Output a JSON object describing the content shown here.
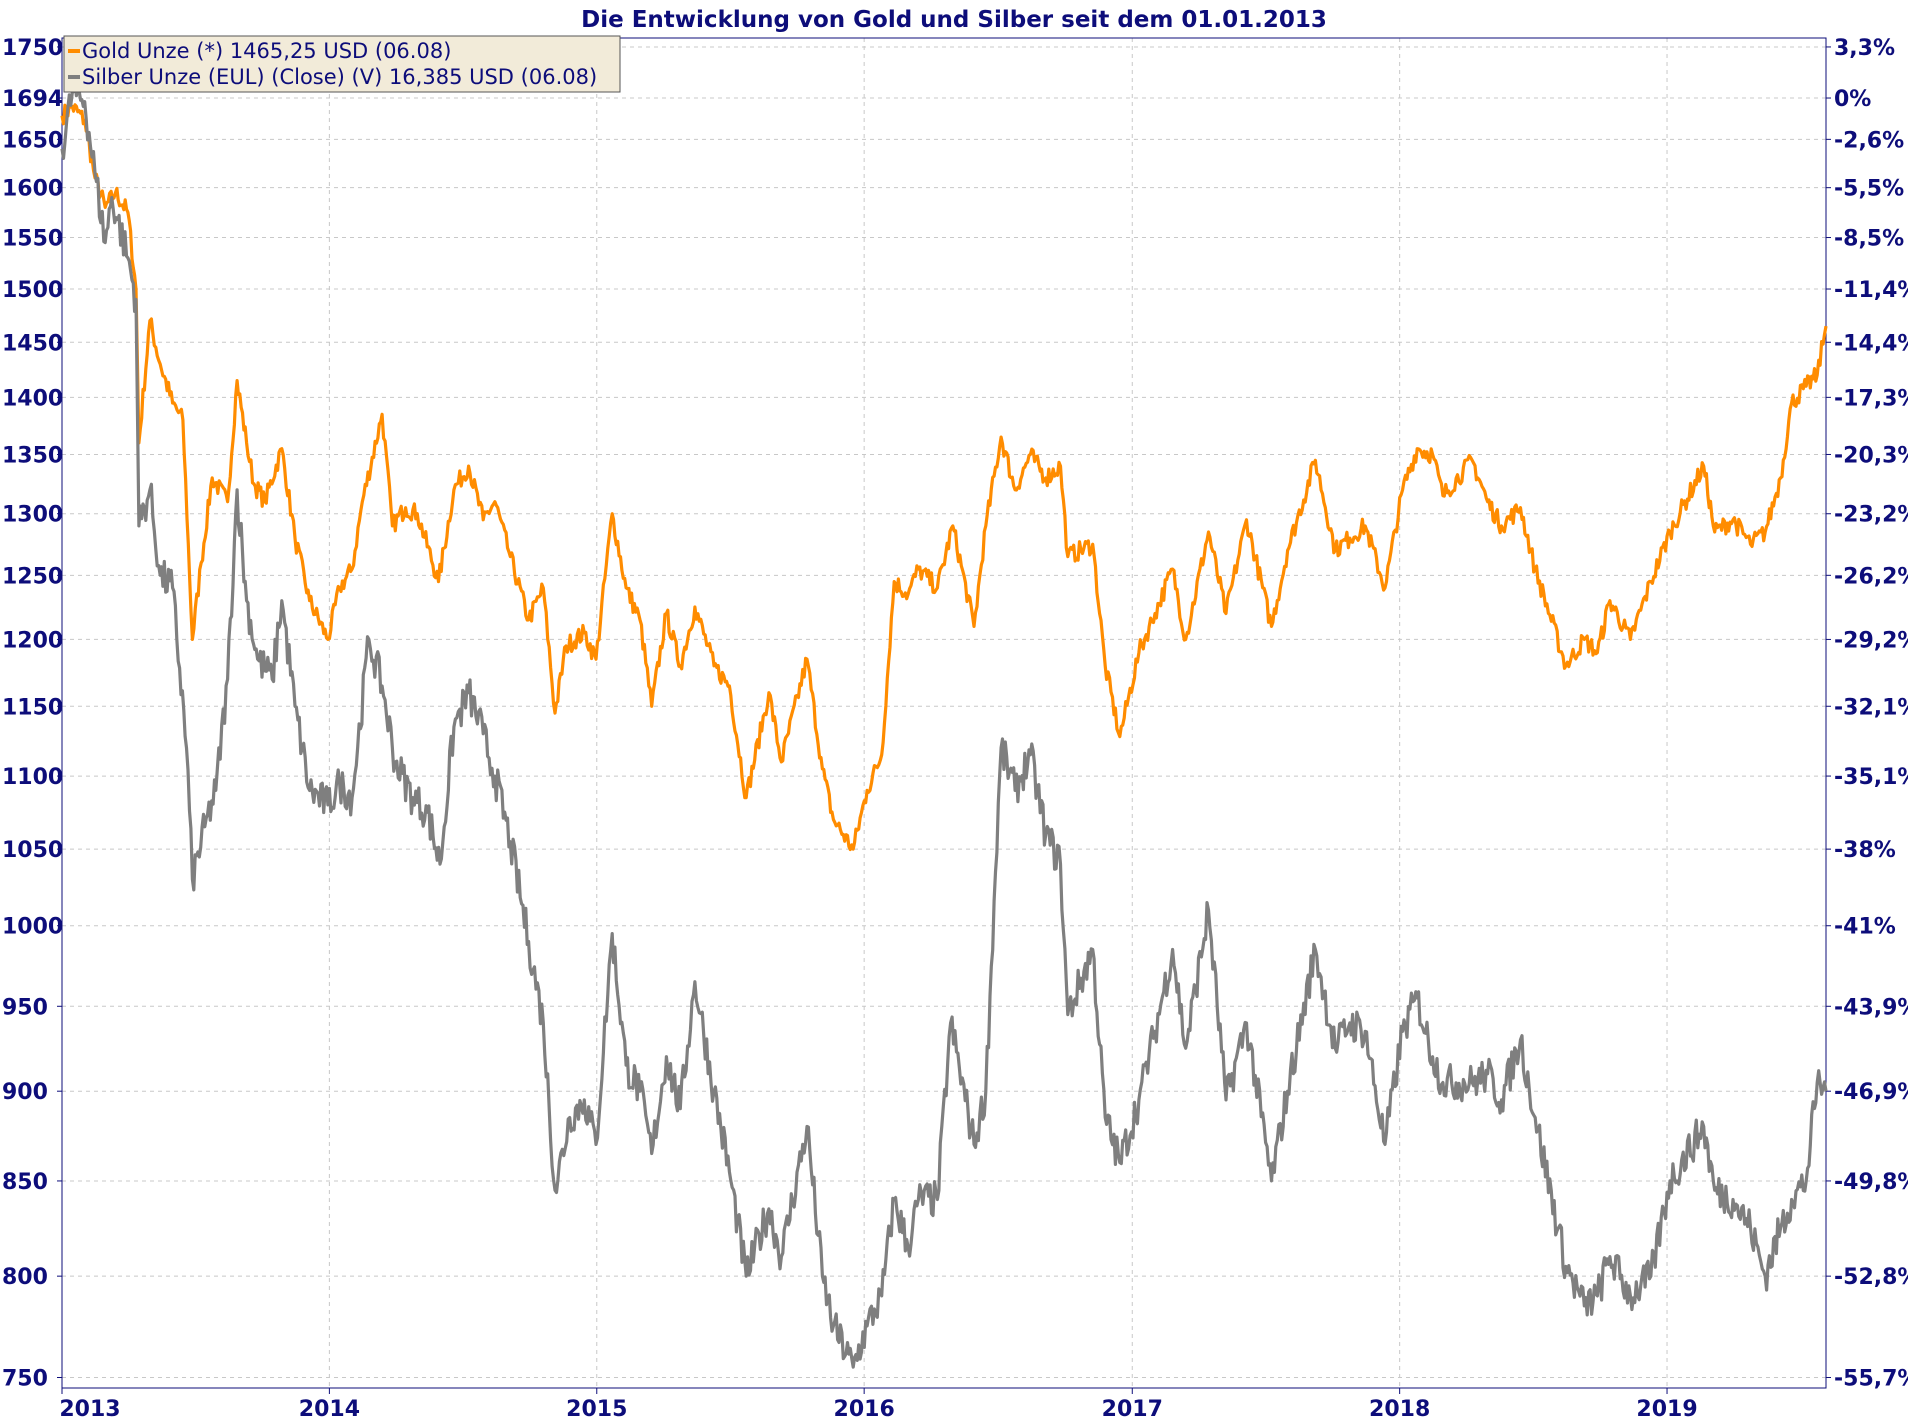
{
  "chart_data": {
    "type": "line",
    "title": "Die Entwicklung von Gold und Silber seit dem 01.01.2013",
    "x_tick_labels": [
      "2013",
      "2014",
      "2015",
      "2016",
      "2017",
      "2018",
      "2019"
    ],
    "x_range": [
      "2013-01-01",
      "2019-08-06"
    ],
    "y_left": {
      "scale": "log",
      "range": [
        745,
        1760
      ],
      "tick_labels": [
        "1750",
        "1694",
        "1650",
        "1600",
        "1550",
        "1500",
        "1450",
        "1400",
        "1350",
        "1300",
        "1250",
        "1200",
        "1150",
        "1100",
        "1050",
        "1000",
        "950",
        "900",
        "850",
        "800",
        "750"
      ],
      "tick_values": [
        1750,
        1694,
        1650,
        1600,
        1550,
        1500,
        1450,
        1400,
        1350,
        1300,
        1250,
        1200,
        1150,
        1100,
        1050,
        1000,
        950,
        900,
        850,
        800,
        750
      ]
    },
    "y_right": {
      "tick_labels": [
        "3,3%",
        "0%",
        "-2,6%",
        "-5,5%",
        "-8,5%",
        "-11,4%",
        "-14,4%",
        "-17,3%",
        "-20,3%",
        "-23,2%",
        "-26,2%",
        "-29,2%",
        "-32,1%",
        "-35,1%",
        "-38%",
        "-41%",
        "-43,9%",
        "-46,9%",
        "-49,8%",
        "-52,8%",
        "-55,7%"
      ]
    },
    "grid": true,
    "legend_position": "top-left",
    "series": [
      {
        "name": "Gold Unze (*) 1465,25 USD (06.08)",
        "color": "#ff8c00",
        "points": [
          [
            "2013-01-01",
            1675
          ],
          [
            "2013-01-15",
            1685
          ],
          [
            "2013-02-01",
            1670
          ],
          [
            "2013-02-15",
            1610
          ],
          [
            "2013-03-01",
            1580
          ],
          [
            "2013-03-15",
            1595
          ],
          [
            "2013-04-01",
            1575
          ],
          [
            "2013-04-12",
            1500
          ],
          [
            "2013-04-16",
            1360
          ],
          [
            "2013-05-01",
            1470
          ],
          [
            "2013-05-15",
            1430
          ],
          [
            "2013-06-01",
            1395
          ],
          [
            "2013-06-15",
            1380
          ],
          [
            "2013-06-28",
            1200
          ],
          [
            "2013-07-10",
            1260
          ],
          [
            "2013-07-25",
            1330
          ],
          [
            "2013-08-15",
            1310
          ],
          [
            "2013-08-28",
            1415
          ],
          [
            "2013-09-10",
            1360
          ],
          [
            "2013-09-20",
            1325
          ],
          [
            "2013-10-05",
            1310
          ],
          [
            "2013-10-28",
            1355
          ],
          [
            "2013-11-15",
            1280
          ],
          [
            "2013-12-05",
            1230
          ],
          [
            "2013-12-30",
            1200
          ],
          [
            "2014-01-15",
            1240
          ],
          [
            "2014-02-01",
            1255
          ],
          [
            "2014-02-15",
            1310
          ],
          [
            "2014-03-14",
            1385
          ],
          [
            "2014-03-28",
            1290
          ],
          [
            "2014-04-15",
            1305
          ],
          [
            "2014-05-01",
            1300
          ],
          [
            "2014-05-30",
            1245
          ],
          [
            "2014-06-20",
            1320
          ],
          [
            "2014-07-10",
            1340
          ],
          [
            "2014-07-30",
            1295
          ],
          [
            "2014-08-15",
            1310
          ],
          [
            "2014-09-05",
            1265
          ],
          [
            "2014-09-30",
            1215
          ],
          [
            "2014-10-20",
            1240
          ],
          [
            "2014-11-05",
            1145
          ],
          [
            "2014-11-20",
            1195
          ],
          [
            "2014-12-15",
            1205
          ],
          [
            "2014-12-31",
            1185
          ],
          [
            "2015-01-22",
            1300
          ],
          [
            "2015-02-10",
            1240
          ],
          [
            "2015-03-01",
            1215
          ],
          [
            "2015-03-17",
            1150
          ],
          [
            "2015-04-06",
            1220
          ],
          [
            "2015-04-25",
            1180
          ],
          [
            "2015-05-15",
            1225
          ],
          [
            "2015-06-10",
            1180
          ],
          [
            "2015-07-01",
            1165
          ],
          [
            "2015-07-24",
            1085
          ],
          [
            "2015-08-24",
            1160
          ],
          [
            "2015-09-10",
            1110
          ],
          [
            "2015-10-15",
            1185
          ],
          [
            "2015-11-05",
            1105
          ],
          [
            "2015-11-20",
            1070
          ],
          [
            "2015-12-17",
            1050
          ],
          [
            "2016-01-05",
            1090
          ],
          [
            "2016-01-25",
            1115
          ],
          [
            "2016-02-11",
            1245
          ],
          [
            "2016-03-01",
            1235
          ],
          [
            "2016-03-15",
            1255
          ],
          [
            "2016-04-10",
            1240
          ],
          [
            "2016-05-01",
            1290
          ],
          [
            "2016-05-30",
            1210
          ],
          [
            "2016-06-15",
            1290
          ],
          [
            "2016-07-06",
            1365
          ],
          [
            "2016-07-25",
            1320
          ],
          [
            "2016-08-15",
            1350
          ],
          [
            "2016-09-05",
            1330
          ],
          [
            "2016-09-25",
            1340
          ],
          [
            "2016-10-05",
            1265
          ],
          [
            "2016-11-08",
            1275
          ],
          [
            "2016-11-25",
            1180
          ],
          [
            "2016-12-15",
            1128
          ],
          [
            "2017-01-10",
            1190
          ],
          [
            "2017-02-01",
            1220
          ],
          [
            "2017-02-25",
            1255
          ],
          [
            "2017-03-15",
            1200
          ],
          [
            "2017-04-15",
            1285
          ],
          [
            "2017-05-09",
            1220
          ],
          [
            "2017-06-06",
            1295
          ],
          [
            "2017-07-10",
            1210
          ],
          [
            "2017-08-01",
            1270
          ],
          [
            "2017-09-08",
            1345
          ],
          [
            "2017-10-05",
            1270
          ],
          [
            "2017-10-25",
            1280
          ],
          [
            "2017-11-15",
            1290
          ],
          [
            "2017-12-12",
            1240
          ],
          [
            "2018-01-05",
            1320
          ],
          [
            "2018-01-25",
            1355
          ],
          [
            "2018-02-15",
            1350
          ],
          [
            "2018-03-01",
            1315
          ],
          [
            "2018-04-10",
            1345
          ],
          [
            "2018-05-01",
            1310
          ],
          [
            "2018-05-20",
            1290
          ],
          [
            "2018-06-15",
            1305
          ],
          [
            "2018-07-05",
            1255
          ],
          [
            "2018-08-16",
            1180
          ],
          [
            "2018-09-10",
            1200
          ],
          [
            "2018-09-28",
            1190
          ],
          [
            "2018-10-15",
            1230
          ],
          [
            "2018-11-12",
            1200
          ],
          [
            "2018-12-10",
            1245
          ],
          [
            "2019-01-05",
            1285
          ],
          [
            "2019-02-20",
            1340
          ],
          [
            "2019-03-07",
            1285
          ],
          [
            "2019-04-01",
            1295
          ],
          [
            "2019-04-25",
            1275
          ],
          [
            "2019-05-15",
            1285
          ],
          [
            "2019-06-05",
            1330
          ],
          [
            "2019-06-20",
            1395
          ],
          [
            "2019-07-10",
            1410
          ],
          [
            "2019-07-25",
            1420
          ],
          [
            "2019-08-06",
            1465
          ]
        ]
      },
      {
        "name": "Silber Unze (EUL) (Close) (V) 16,385 USD (06.08)",
        "color": "#7f7f7f",
        "points": [
          [
            "2013-01-01",
            1640
          ],
          [
            "2013-01-15",
            1700
          ],
          [
            "2013-02-01",
            1690
          ],
          [
            "2013-02-15",
            1615
          ],
          [
            "2013-03-01",
            1545
          ],
          [
            "2013-03-10",
            1590
          ],
          [
            "2013-04-01",
            1530
          ],
          [
            "2013-04-12",
            1490
          ],
          [
            "2013-04-16",
            1290
          ],
          [
            "2013-05-01",
            1320
          ],
          [
            "2013-05-15",
            1250
          ],
          [
            "2013-06-01",
            1240
          ],
          [
            "2013-06-20",
            1120
          ],
          [
            "2013-06-28",
            1030
          ],
          [
            "2013-07-15",
            1065
          ],
          [
            "2013-07-30",
            1090
          ],
          [
            "2013-08-15",
            1170
          ],
          [
            "2013-08-28",
            1320
          ],
          [
            "2013-09-10",
            1230
          ],
          [
            "2013-09-25",
            1185
          ],
          [
            "2013-10-15",
            1170
          ],
          [
            "2013-10-28",
            1230
          ],
          [
            "2013-11-15",
            1150
          ],
          [
            "2013-12-05",
            1090
          ],
          [
            "2013-12-30",
            1080
          ],
          [
            "2014-01-15",
            1095
          ],
          [
            "2014-02-01",
            1085
          ],
          [
            "2014-02-24",
            1200
          ],
          [
            "2014-03-14",
            1165
          ],
          [
            "2014-04-01",
            1110
          ],
          [
            "2014-04-25",
            1085
          ],
          [
            "2014-05-15",
            1075
          ],
          [
            "2014-06-01",
            1040
          ],
          [
            "2014-06-20",
            1135
          ],
          [
            "2014-07-10",
            1160
          ],
          [
            "2014-07-30",
            1130
          ],
          [
            "2014-08-15",
            1100
          ],
          [
            "2014-09-05",
            1055
          ],
          [
            "2014-09-30",
            990
          ],
          [
            "2014-10-20",
            940
          ],
          [
            "2014-11-05",
            845
          ],
          [
            "2014-11-25",
            885
          ],
          [
            "2014-12-15",
            895
          ],
          [
            "2014-12-31",
            870
          ],
          [
            "2015-01-22",
            995
          ],
          [
            "2015-02-10",
            915
          ],
          [
            "2015-03-01",
            900
          ],
          [
            "2015-03-17",
            865
          ],
          [
            "2015-04-06",
            920
          ],
          [
            "2015-04-25",
            890
          ],
          [
            "2015-05-15",
            965
          ],
          [
            "2015-06-10",
            900
          ],
          [
            "2015-07-01",
            855
          ],
          [
            "2015-07-24",
            800
          ],
          [
            "2015-08-24",
            835
          ],
          [
            "2015-09-10",
            810
          ],
          [
            "2015-10-15",
            880
          ],
          [
            "2015-11-05",
            800
          ],
          [
            "2015-11-20",
            775
          ],
          [
            "2015-12-17",
            755
          ],
          [
            "2016-01-05",
            775
          ],
          [
            "2016-01-25",
            790
          ],
          [
            "2016-02-11",
            840
          ],
          [
            "2016-03-01",
            815
          ],
          [
            "2016-03-15",
            840
          ],
          [
            "2016-04-10",
            840
          ],
          [
            "2016-04-28",
            940
          ],
          [
            "2016-05-30",
            870
          ],
          [
            "2016-06-15",
            900
          ],
          [
            "2016-07-06",
            1120
          ],
          [
            "2016-07-25",
            1090
          ],
          [
            "2016-08-15",
            1115
          ],
          [
            "2016-09-05",
            1060
          ],
          [
            "2016-09-25",
            1040
          ],
          [
            "2016-10-05",
            945
          ],
          [
            "2016-11-08",
            985
          ],
          [
            "2016-11-25",
            885
          ],
          [
            "2016-12-15",
            860
          ],
          [
            "2017-01-10",
            895
          ],
          [
            "2017-02-01",
            935
          ],
          [
            "2017-02-25",
            985
          ],
          [
            "2017-03-15",
            925
          ],
          [
            "2017-04-15",
            1010
          ],
          [
            "2017-05-09",
            895
          ],
          [
            "2017-06-06",
            940
          ],
          [
            "2017-07-10",
            850
          ],
          [
            "2017-08-01",
            900
          ],
          [
            "2017-09-08",
            985
          ],
          [
            "2017-10-05",
            925
          ],
          [
            "2017-10-25",
            940
          ],
          [
            "2017-11-15",
            935
          ],
          [
            "2017-12-12",
            870
          ],
          [
            "2018-01-05",
            935
          ],
          [
            "2018-01-25",
            955
          ],
          [
            "2018-02-15",
            920
          ],
          [
            "2018-03-01",
            905
          ],
          [
            "2018-04-10",
            905
          ],
          [
            "2018-05-01",
            910
          ],
          [
            "2018-05-20",
            895
          ],
          [
            "2018-06-15",
            930
          ],
          [
            "2018-07-05",
            885
          ],
          [
            "2018-08-16",
            805
          ],
          [
            "2018-09-10",
            785
          ],
          [
            "2018-09-28",
            790
          ],
          [
            "2018-10-15",
            810
          ],
          [
            "2018-11-12",
            790
          ],
          [
            "2018-12-10",
            800
          ],
          [
            "2019-01-05",
            850
          ],
          [
            "2019-02-20",
            880
          ],
          [
            "2019-03-07",
            845
          ],
          [
            "2019-04-01",
            840
          ],
          [
            "2019-04-25",
            825
          ],
          [
            "2019-05-15",
            800
          ],
          [
            "2019-06-05",
            825
          ],
          [
            "2019-06-20",
            840
          ],
          [
            "2019-07-10",
            850
          ],
          [
            "2019-07-25",
            905
          ],
          [
            "2019-08-06",
            900
          ]
        ]
      }
    ]
  }
}
